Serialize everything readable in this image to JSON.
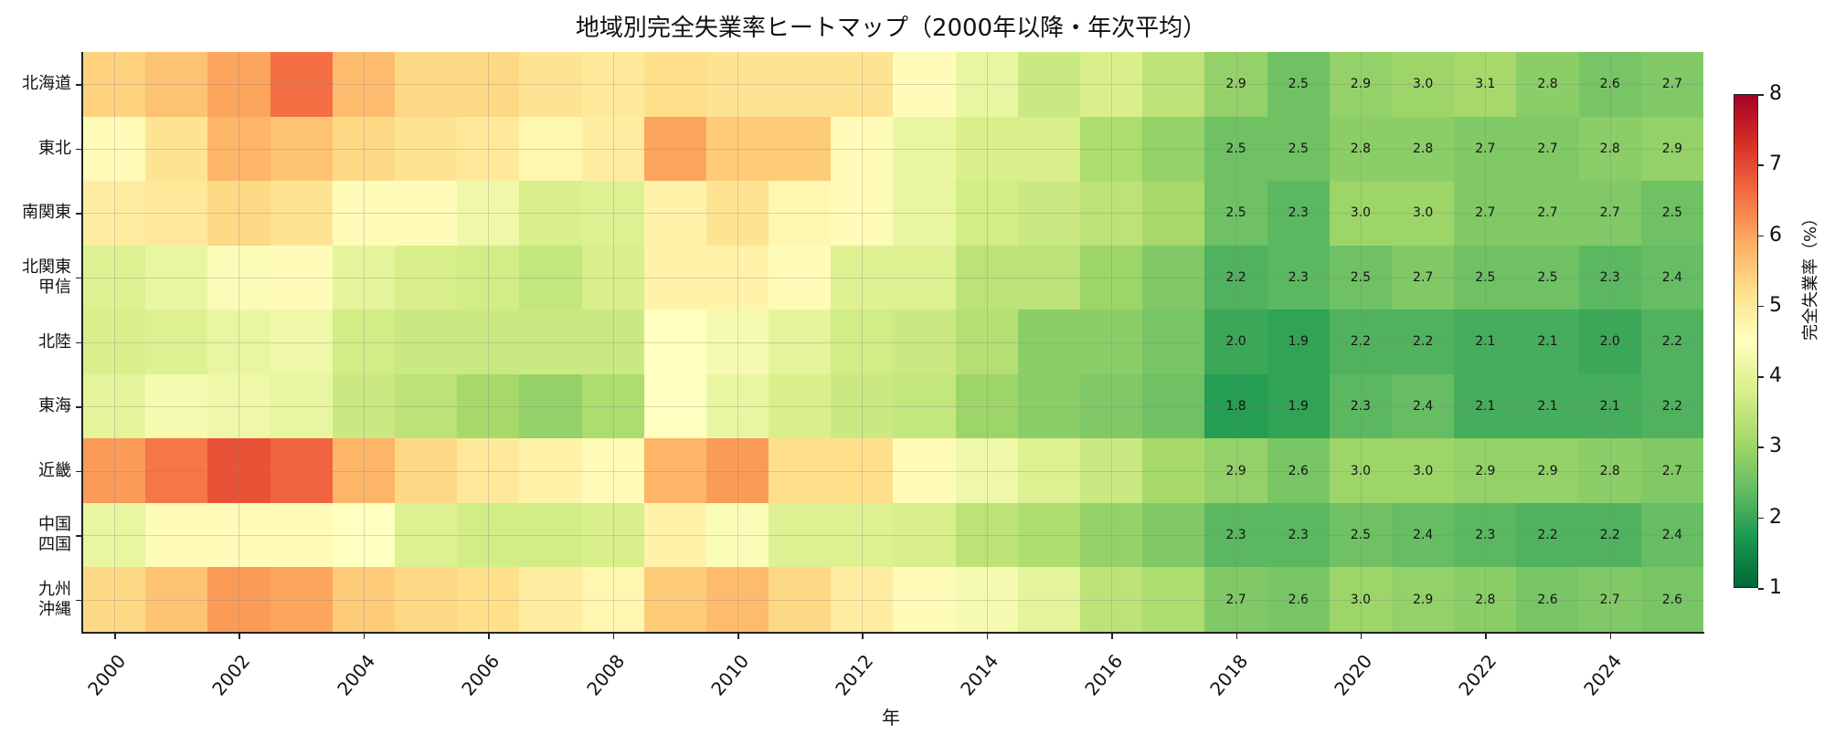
{
  "chart_data": {
    "type": "heatmap",
    "title": "地域別完全失業率ヒートマップ（2000年以降・年次平均）",
    "xlabel": "年",
    "ylabel": "",
    "colorbar_label": "完全失業率（%）",
    "colormap": "RdYlGn_r",
    "vmin": 1,
    "vmax": 8,
    "colorbar_ticks": [
      1,
      2,
      3,
      4,
      5,
      6,
      7,
      8
    ],
    "x_tick_labels": [
      "2000",
      "2002",
      "2004",
      "2006",
      "2008",
      "2010",
      "2012",
      "2014",
      "2016",
      "2018",
      "2020",
      "2022",
      "2024"
    ],
    "x": [
      2000,
      2001,
      2002,
      2003,
      2004,
      2005,
      2006,
      2007,
      2008,
      2009,
      2010,
      2011,
      2012,
      2013,
      2014,
      2015,
      2016,
      2017,
      2018,
      2019,
      2020,
      2021,
      2022,
      2023,
      2024,
      2025
    ],
    "rows": [
      "北海道",
      "東北",
      "南関東",
      "北関東\n甲信",
      "北陸",
      "東海",
      "近畿",
      "中国\n四国",
      "九州\n沖縄"
    ],
    "annotated_from_index": 18,
    "values": [
      [
        5.4,
        5.6,
        6.0,
        6.6,
        5.7,
        5.3,
        5.3,
        5.1,
        5.0,
        5.2,
        5.1,
        5.1,
        5.1,
        4.6,
        4.1,
        3.6,
        3.8,
        3.4,
        2.9,
        2.5,
        2.9,
        3.0,
        3.1,
        2.8,
        2.6,
        2.7
      ],
      [
        4.6,
        5.1,
        5.8,
        5.6,
        5.3,
        5.1,
        5.0,
        4.7,
        4.9,
        6.0,
        5.5,
        5.5,
        4.6,
        4.1,
        3.8,
        3.8,
        3.2,
        2.9,
        2.5,
        2.5,
        2.8,
        2.8,
        2.7,
        2.7,
        2.8,
        2.9
      ],
      [
        4.9,
        5.0,
        5.3,
        5.1,
        4.6,
        4.6,
        4.2,
        3.8,
        3.9,
        4.8,
        5.1,
        4.7,
        4.6,
        4.1,
        3.7,
        3.6,
        3.4,
        3.1,
        2.5,
        2.3,
        3.0,
        3.0,
        2.7,
        2.7,
        2.7,
        2.5
      ],
      [
        3.9,
        4.1,
        4.4,
        4.6,
        4.0,
        3.8,
        3.7,
        3.5,
        3.8,
        4.8,
        4.8,
        4.6,
        3.9,
        3.9,
        3.4,
        3.4,
        3.0,
        2.7,
        2.2,
        2.3,
        2.5,
        2.7,
        2.5,
        2.5,
        2.3,
        2.4
      ],
      [
        3.8,
        3.9,
        4.1,
        4.2,
        3.7,
        3.6,
        3.6,
        3.6,
        3.6,
        4.5,
        4.3,
        4.0,
        3.7,
        3.6,
        3.3,
        2.8,
        2.8,
        2.6,
        2.0,
        1.9,
        2.2,
        2.2,
        2.1,
        2.1,
        2.0,
        2.2
      ],
      [
        4.0,
        4.3,
        4.2,
        4.1,
        3.6,
        3.4,
        3.1,
        2.9,
        3.2,
        4.5,
        4.1,
        3.8,
        3.6,
        3.5,
        3.0,
        2.8,
        2.7,
        2.5,
        1.8,
        1.9,
        2.3,
        2.4,
        2.1,
        2.1,
        2.1,
        2.2
      ],
      [
        6.1,
        6.5,
        6.9,
        6.7,
        5.8,
        5.3,
        5.0,
        4.8,
        4.6,
        5.8,
        6.1,
        5.2,
        5.2,
        4.6,
        4.2,
        3.9,
        3.6,
        3.1,
        2.9,
        2.6,
        3.0,
        3.0,
        2.9,
        2.9,
        2.8,
        2.7
      ],
      [
        4.1,
        4.6,
        4.6,
        4.6,
        4.5,
        3.9,
        3.7,
        3.7,
        3.8,
        4.8,
        4.4,
        3.9,
        3.9,
        3.8,
        3.4,
        3.2,
        2.9,
        2.7,
        2.3,
        2.3,
        2.5,
        2.4,
        2.3,
        2.2,
        2.2,
        2.4
      ],
      [
        5.3,
        5.6,
        6.1,
        6.0,
        5.5,
        5.3,
        5.2,
        4.9,
        4.7,
        5.5,
        5.7,
        5.3,
        4.9,
        4.6,
        4.3,
        4.0,
        3.4,
        3.2,
        2.7,
        2.6,
        3.0,
        2.9,
        2.8,
        2.6,
        2.7,
        2.6
      ]
    ],
    "grid": true
  }
}
